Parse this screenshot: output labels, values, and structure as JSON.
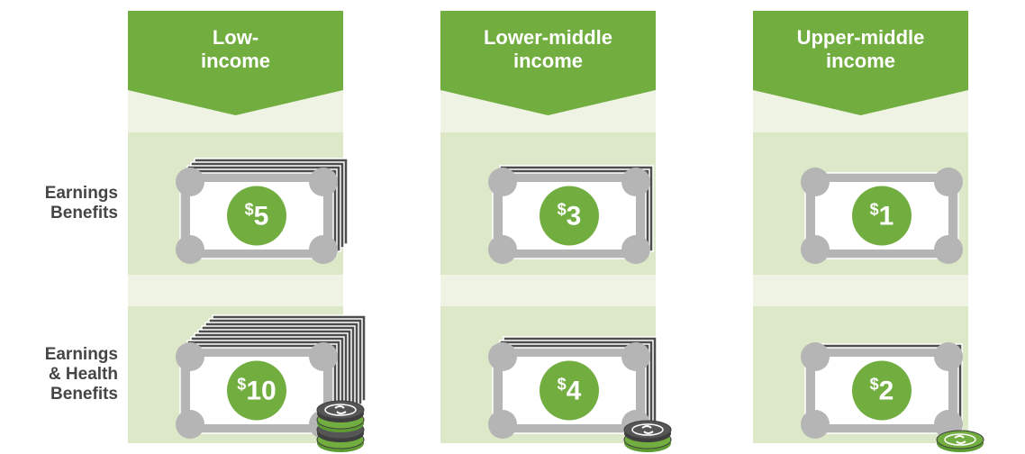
{
  "columns": [
    {
      "title": [
        "Low-",
        "income"
      ]
    },
    {
      "title": [
        "Lower-middle",
        "income"
      ]
    },
    {
      "title": [
        "Upper-middle",
        "income"
      ]
    }
  ],
  "rows": [
    {
      "label": [
        "Earnings",
        "Benefits"
      ],
      "amounts": [
        5,
        3,
        1
      ]
    },
    {
      "label": [
        "Earnings",
        "& Health",
        "Benefits"
      ],
      "amounts": [
        10,
        4,
        2
      ]
    }
  ],
  "currency_symbol": "$"
}
